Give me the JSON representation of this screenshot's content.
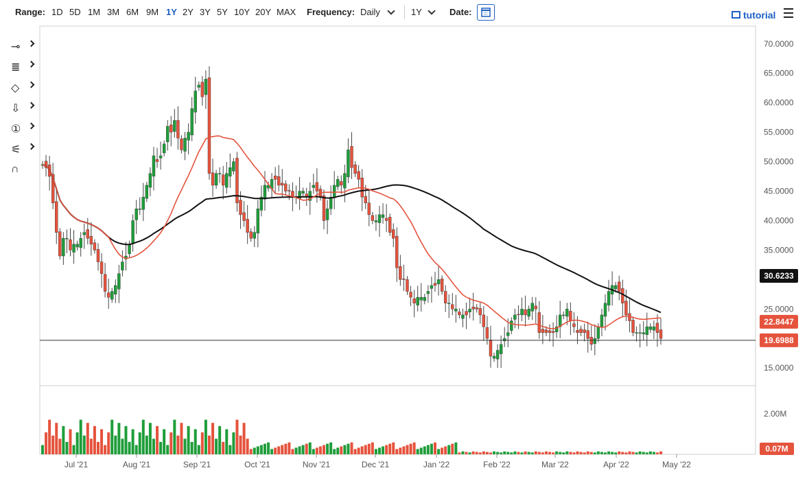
{
  "toolbar": {
    "range_label": "Range:",
    "ranges": [
      "1D",
      "5D",
      "1M",
      "3M",
      "6M",
      "9M",
      "1Y",
      "2Y",
      "3Y",
      "5Y",
      "10Y",
      "20Y",
      "MAX"
    ],
    "active_range": "1Y",
    "frequency_label": "Frequency:",
    "frequency_value": "Daily",
    "period_value": "1Y",
    "date_label": "Date:",
    "tutorial_label": "tutorial",
    "icons": [
      "calendar-icon",
      "tutorial-icon",
      "menu-icon"
    ]
  },
  "drawing_tools": [
    {
      "name": "line-tool",
      "glyph": "⊸"
    },
    {
      "name": "fib-tool",
      "glyph": "≣"
    },
    {
      "name": "shape-tool",
      "glyph": "◇"
    },
    {
      "name": "arrow-tool",
      "glyph": "⇩"
    },
    {
      "name": "annotation-tool",
      "glyph": "①"
    },
    {
      "name": "settings-tool",
      "glyph": "⚟"
    },
    {
      "name": "magnet-tool",
      "glyph": "∩"
    }
  ],
  "colors": {
    "up": "#1f9d3a",
    "down": "#e5533d",
    "ma50": "#e5533d",
    "ma200": "#111111",
    "last": "#e5533d",
    "axis": "#555555"
  },
  "chart_data": {
    "type": "candlestick",
    "y_ticks": [
      "70.0000",
      "65.0000",
      "60.0000",
      "55.0000",
      "50.0000",
      "45.0000",
      "40.0000",
      "35.0000",
      "25.0000",
      "15.0000"
    ],
    "y_tick_values": [
      70,
      65,
      60,
      55,
      50,
      45,
      40,
      35,
      25,
      15
    ],
    "ylim": [
      12,
      73
    ],
    "x_ticks": [
      "Jul '21",
      "Aug '21",
      "Sep '21",
      "Oct '21",
      "Nov '21",
      "Dec '21",
      "Jan '22",
      "Feb '22",
      "Mar '22",
      "Apr '22",
      "May '22"
    ],
    "labels": {
      "ma200": "30.6233",
      "ma50": "22.8447",
      "last": "19.6988"
    },
    "label_values": {
      "ma200": 30.6233,
      "ma50": 22.8447,
      "last": 19.6988
    },
    "volume_ticks": [
      "2.00M"
    ],
    "volume_last_label": "0.07M",
    "volume_scale_max": 2.6,
    "closes": [
      49.5,
      49,
      47.5,
      43,
      38,
      34,
      37,
      37,
      35,
      36,
      36,
      37,
      38,
      37,
      36,
      35,
      33,
      31,
      28,
      27,
      28,
      29,
      31,
      33,
      34,
      36,
      40,
      42,
      42,
      44,
      46,
      48,
      51,
      50,
      51,
      53,
      56,
      55,
      57,
      54,
      52,
      54,
      55,
      59,
      62,
      63,
      61,
      64,
      48,
      46,
      48,
      48,
      46,
      48,
      49,
      50,
      43,
      41,
      40,
      38,
      37,
      38,
      42,
      44,
      46,
      46,
      47,
      47,
      46,
      46,
      45,
      45,
      44,
      44,
      45,
      45,
      44,
      45,
      46,
      45,
      44,
      40,
      42,
      44,
      46,
      47,
      46,
      48,
      52,
      49,
      48,
      47,
      44,
      43,
      41,
      40,
      40,
      41,
      41,
      40,
      38,
      37,
      32,
      30,
      30,
      28,
      27,
      26,
      27,
      27,
      27,
      28,
      29,
      29,
      30,
      28,
      26,
      26,
      25,
      25,
      24,
      24,
      24,
      25,
      25,
      25,
      24,
      22,
      20,
      17,
      17,
      18,
      19,
      20,
      21,
      23,
      24,
      24,
      25,
      24,
      25,
      26,
      25,
      21,
      21,
      21,
      21,
      21,
      22,
      24,
      24,
      25,
      23,
      22,
      21,
      21,
      21,
      20,
      19,
      20,
      22,
      24,
      26,
      28,
      29,
      29,
      28,
      26,
      24,
      23,
      21,
      21,
      21,
      21,
      22,
      22,
      22,
      21,
      20
    ]
  }
}
